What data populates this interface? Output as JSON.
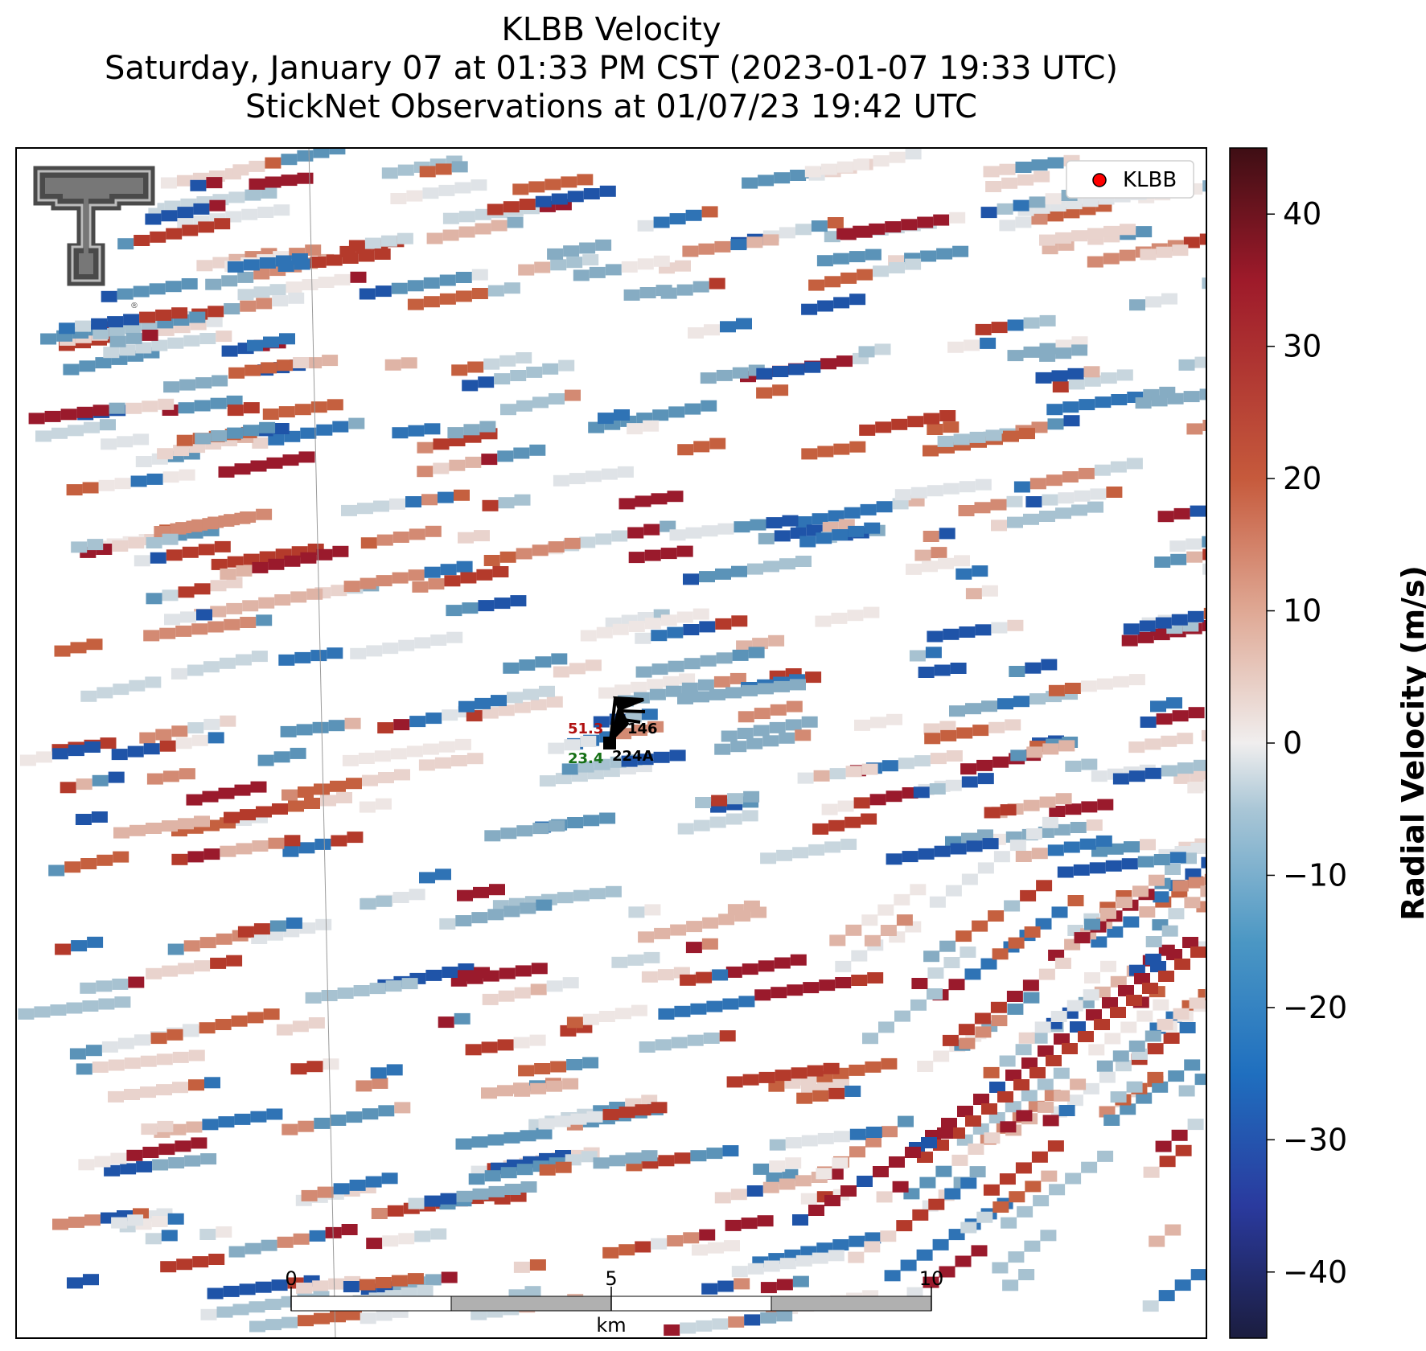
{
  "title": {
    "line1": "KLBB Velocity",
    "line2": "Saturday, January 07 at 01:33 PM CST (2023-01-07 19:33 UTC)",
    "line3": "StickNet Observations at 01/07/23 19:42 UTC"
  },
  "legend": {
    "label": "KLBB",
    "marker_color": "#ff0000"
  },
  "colorbar": {
    "label": "Radial Velocity (m/s)",
    "min": -45,
    "max": 45,
    "ticks": [
      "40",
      "30",
      "20",
      "10",
      "0",
      "−10",
      "−20",
      "−30",
      "−40"
    ],
    "tick_values": [
      40,
      30,
      20,
      10,
      0,
      -10,
      -20,
      -30,
      -40
    ],
    "stops": [
      "#1b1d3f",
      "#2a3a9e",
      "#1f6fbf",
      "#4b97c4",
      "#a9c6d6",
      "#f0eeee",
      "#dfa894",
      "#c65a3c",
      "#9e1a2a",
      "#3e0e14"
    ]
  },
  "scalebar": {
    "ticks": [
      "0",
      "5",
      "10"
    ],
    "unit": "km"
  },
  "station": {
    "id": "224A",
    "temperature": "51.3",
    "dewpoint": "23.4",
    "pressure_code": "146",
    "temperature_color": "#b01010",
    "dewpoint_color": "#167016"
  },
  "logo": {
    "name": "Texas Tech Double T"
  }
}
